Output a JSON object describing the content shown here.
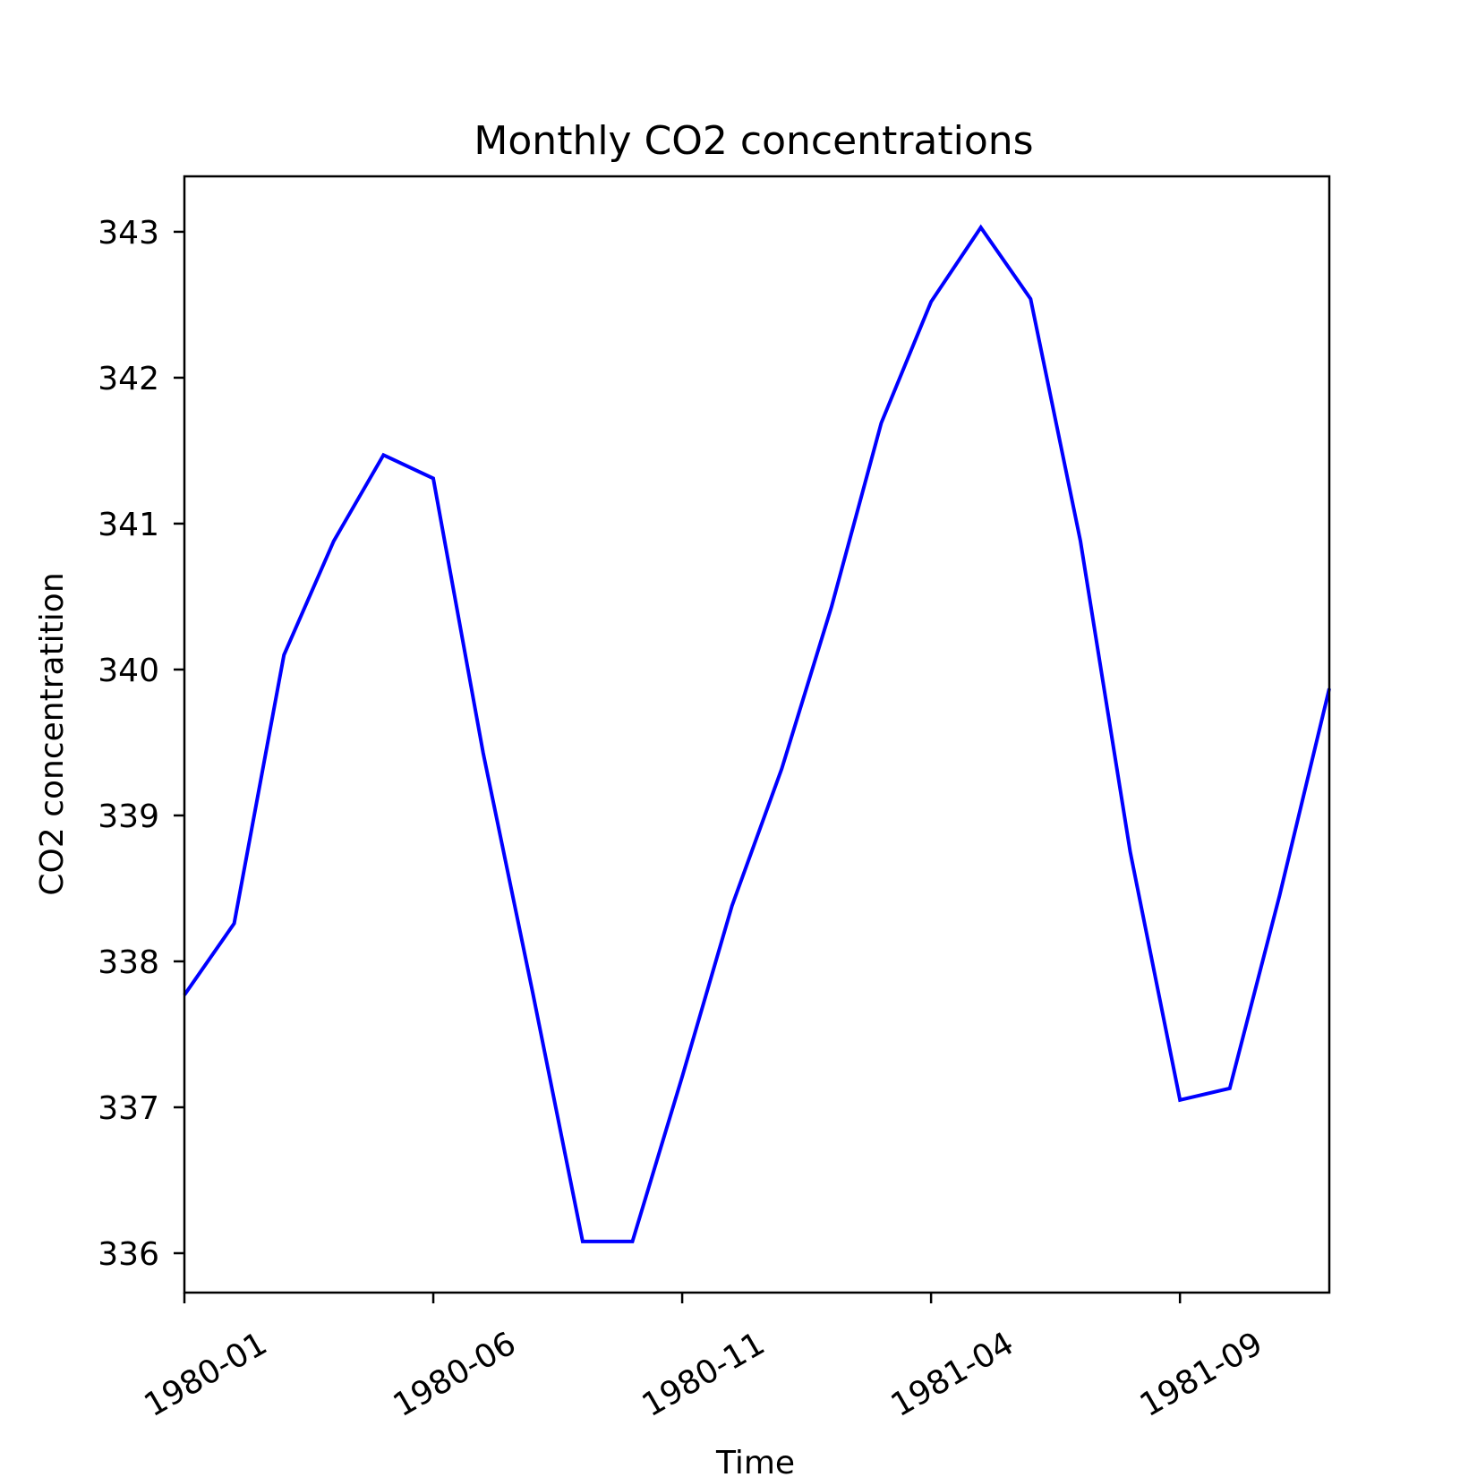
{
  "chart_data": {
    "type": "line",
    "title": "Monthly CO2 concentrations",
    "xlabel": "Time",
    "ylabel": "CO2 concentratition",
    "x": [
      "1980-01",
      "1980-02",
      "1980-03",
      "1980-04",
      "1980-05",
      "1980-06",
      "1980-07",
      "1980-08",
      "1980-09",
      "1980-10",
      "1980-11",
      "1980-12",
      "1981-01",
      "1981-02",
      "1981-03",
      "1981-04",
      "1981-05",
      "1981-06",
      "1981-07",
      "1981-08",
      "1981-09",
      "1981-10",
      "1981-11",
      "1981-12"
    ],
    "series": [
      {
        "values": [
          337.77,
          338.26,
          340.1,
          340.88,
          341.47,
          341.31,
          339.43,
          337.78,
          336.08,
          336.08,
          337.21,
          338.38,
          339.32,
          340.43,
          341.69,
          342.52,
          343.03,
          342.54,
          340.88,
          338.75,
          337.05,
          337.13,
          338.45,
          339.87
        ],
        "color": "#0000ff"
      }
    ],
    "xlim": [
      "1980-01",
      "1981-12"
    ],
    "ylim": [
      335.73,
      343.38
    ],
    "xticks": [
      "1980-01",
      "1980-06",
      "1980-11",
      "1981-04",
      "1981-09"
    ],
    "yticks": [
      336,
      337,
      338,
      339,
      340,
      341,
      342,
      343
    ],
    "grid": false,
    "legend": "none"
  }
}
